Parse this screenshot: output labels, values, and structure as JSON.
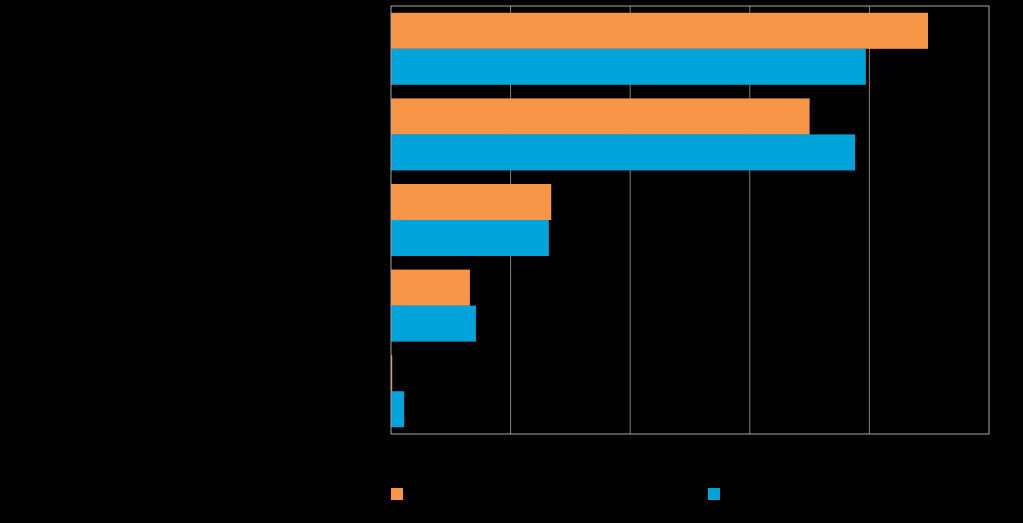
{
  "chart_data": {
    "type": "bar",
    "orientation": "horizontal",
    "categories": [
      "",
      "",
      "",
      "",
      ""
    ],
    "series": [
      {
        "color": "#F79646",
        "values": [
          44.9,
          35.0,
          13.4,
          6.6,
          0.1
        ]
      },
      {
        "color": "#00A3DA",
        "values": [
          39.7,
          38.8,
          13.2,
          7.1,
          1.1
        ]
      }
    ],
    "xlim": [
      0,
      50
    ],
    "x_gridlines": [
      0,
      10,
      20,
      30,
      40,
      50
    ],
    "grid": true,
    "legend_placement": "bottom"
  },
  "colors": {
    "background": "#000000",
    "gridline": "#808080",
    "axis": "#A6A6A6"
  }
}
